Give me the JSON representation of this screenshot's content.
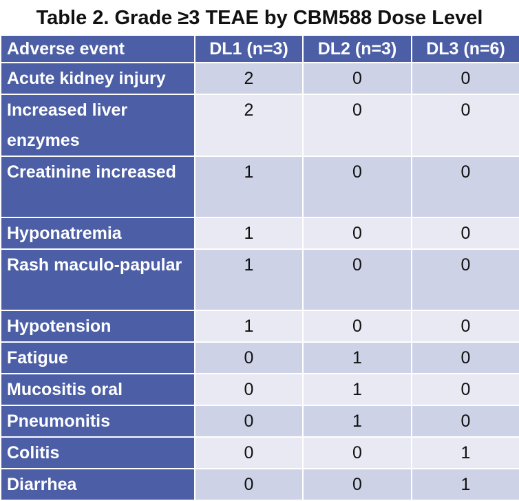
{
  "title": "Table 2. Grade ≥3 TEAE by CBM588 Dose Level",
  "columns": [
    "Adverse event",
    "DL1 (n=3)",
    "DL2 (n=3)",
    "DL3 (n=6)"
  ],
  "rows": [
    {
      "event": "Acute kidney injury",
      "dl1": "2",
      "dl2": "0",
      "dl3": "0"
    },
    {
      "event": "Increased liver enzymes",
      "dl1": "2",
      "dl2": "0",
      "dl3": "0"
    },
    {
      "event": "Creatinine increased",
      "dl1": "1",
      "dl2": "0",
      "dl3": "0"
    },
    {
      "event": "Hyponatremia",
      "dl1": "1",
      "dl2": "0",
      "dl3": "0"
    },
    {
      "event": "Rash maculo-papular",
      "dl1": "1",
      "dl2": "0",
      "dl3": "0"
    },
    {
      "event": "Hypotension",
      "dl1": "1",
      "dl2": "0",
      "dl3": "0"
    },
    {
      "event": "Fatigue",
      "dl1": "0",
      "dl2": "1",
      "dl3": "0"
    },
    {
      "event": "Mucositis oral",
      "dl1": "0",
      "dl2": "1",
      "dl3": "0"
    },
    {
      "event": "Pneumonitis",
      "dl1": "0",
      "dl2": "1",
      "dl3": "0"
    },
    {
      "event": "Colitis",
      "dl1": "0",
      "dl2": "0",
      "dl3": "1"
    },
    {
      "event": "Diarrhea",
      "dl1": "0",
      "dl2": "0",
      "dl3": "1"
    }
  ],
  "colors": {
    "header_background": "#4b5ea6",
    "header_text": "#ffffff",
    "row_odd": "#cdd2e6",
    "row_even": "#e8e9f2"
  }
}
